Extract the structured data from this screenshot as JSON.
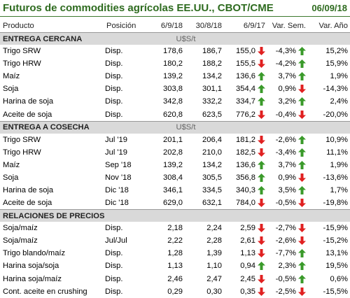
{
  "header": {
    "title": "Futuros de commodities agrícolas EE.UU., CBOT/CME",
    "date": "06/09/18"
  },
  "columns": [
    "Producto",
    "Posición",
    "6/9/18",
    "30/8/18",
    "6/9/17",
    "Var. Sem.",
    "Var. Año"
  ],
  "colors": {
    "title": "#2e6b1f",
    "up": "#3a9a2a",
    "down": "#e02020",
    "section_bg": "#d9d9d9"
  },
  "sections": [
    {
      "title": "ENTREGA CERCANA",
      "unit": "U$S/t",
      "rows": [
        {
          "name": "Trigo SRW",
          "pos": "Disp.",
          "v1": "178,6",
          "v2": "186,7",
          "v3": "155,0",
          "a3": "down",
          "vs": "-4,3%",
          "as": "up",
          "va": "15,2%"
        },
        {
          "name": "Trigo HRW",
          "pos": "Disp.",
          "v1": "180,2",
          "v2": "188,2",
          "v3": "155,5",
          "a3": "down",
          "vs": "-4,2%",
          "as": "up",
          "va": "15,9%"
        },
        {
          "name": "Maíz",
          "pos": "Disp.",
          "v1": "139,2",
          "v2": "134,2",
          "v3": "136,6",
          "a3": "up",
          "vs": "3,7%",
          "as": "up",
          "va": "1,9%"
        },
        {
          "name": "Soja",
          "pos": "Disp.",
          "v1": "303,8",
          "v2": "301,1",
          "v3": "354,4",
          "a3": "up",
          "vs": "0,9%",
          "as": "down",
          "va": "-14,3%"
        },
        {
          "name": "Harina de soja",
          "pos": "Disp.",
          "v1": "342,8",
          "v2": "332,2",
          "v3": "334,7",
          "a3": "up",
          "vs": "3,2%",
          "as": "up",
          "va": "2,4%"
        },
        {
          "name": "Aceite de soja",
          "pos": "Disp.",
          "v1": "620,8",
          "v2": "623,5",
          "v3": "776,2",
          "a3": "down",
          "vs": "-0,4%",
          "as": "down",
          "va": "-20,0%"
        }
      ]
    },
    {
      "title": "ENTREGA A COSECHA",
      "unit": "U$S/t",
      "rows": [
        {
          "name": "Trigo SRW",
          "pos": "Jul '19",
          "v1": "201,1",
          "v2": "206,4",
          "v3": "181,2",
          "a3": "down",
          "vs": "-2,6%",
          "as": "up",
          "va": "10,9%"
        },
        {
          "name": "Trigo HRW",
          "pos": "Jul '19",
          "v1": "202,8",
          "v2": "210,0",
          "v3": "182,5",
          "a3": "down",
          "vs": "-3,4%",
          "as": "up",
          "va": "11,1%"
        },
        {
          "name": "Maíz",
          "pos": "Sep '18",
          "v1": "139,2",
          "v2": "134,2",
          "v3": "136,6",
          "a3": "up",
          "vs": "3,7%",
          "as": "up",
          "va": "1,9%"
        },
        {
          "name": "Soja",
          "pos": "Nov '18",
          "v1": "308,4",
          "v2": "305,5",
          "v3": "356,8",
          "a3": "up",
          "vs": "0,9%",
          "as": "down",
          "va": "-13,6%"
        },
        {
          "name": "Harina de soja",
          "pos": "Dic '18",
          "v1": "346,1",
          "v2": "334,5",
          "v3": "340,3",
          "a3": "up",
          "vs": "3,5%",
          "as": "up",
          "va": "1,7%"
        },
        {
          "name": "Aceite de soja",
          "pos": "Dic '18",
          "v1": "629,0",
          "v2": "632,1",
          "v3": "784,0",
          "a3": "down",
          "vs": "-0,5%",
          "as": "down",
          "va": "-19,8%"
        }
      ]
    },
    {
      "title": "RELACIONES DE PRECIOS",
      "unit": "",
      "rows": [
        {
          "name": "Soja/maíz",
          "pos": "Disp.",
          "v1": "2,18",
          "v2": "2,24",
          "v3": "2,59",
          "a3": "down",
          "vs": "-2,7%",
          "as": "down",
          "va": "-15,9%"
        },
        {
          "name": "Soja/maíz",
          "pos": "Jul/Jul",
          "v1": "2,22",
          "v2": "2,28",
          "v3": "2,61",
          "a3": "down",
          "vs": "-2,6%",
          "as": "down",
          "va": "-15,2%"
        },
        {
          "name": "Trigo blando/maíz",
          "pos": "Disp.",
          "v1": "1,28",
          "v2": "1,39",
          "v3": "1,13",
          "a3": "down",
          "vs": "-7,7%",
          "as": "up",
          "va": "13,1%"
        },
        {
          "name": "Harina soja/soja",
          "pos": "Disp.",
          "v1": "1,13",
          "v2": "1,10",
          "v3": "0,94",
          "a3": "up",
          "vs": "2,3%",
          "as": "up",
          "va": "19,5%"
        },
        {
          "name": "Harina soja/maíz",
          "pos": "Disp.",
          "v1": "2,46",
          "v2": "2,47",
          "v3": "2,45",
          "a3": "down",
          "vs": "-0,5%",
          "as": "up",
          "va": "0,6%"
        },
        {
          "name": "Cont. aceite en crushing",
          "pos": "Disp.",
          "v1": "0,29",
          "v2": "0,30",
          "v3": "0,35",
          "a3": "down",
          "vs": "-2,5%",
          "as": "down",
          "va": "-15,5%"
        }
      ]
    }
  ]
}
